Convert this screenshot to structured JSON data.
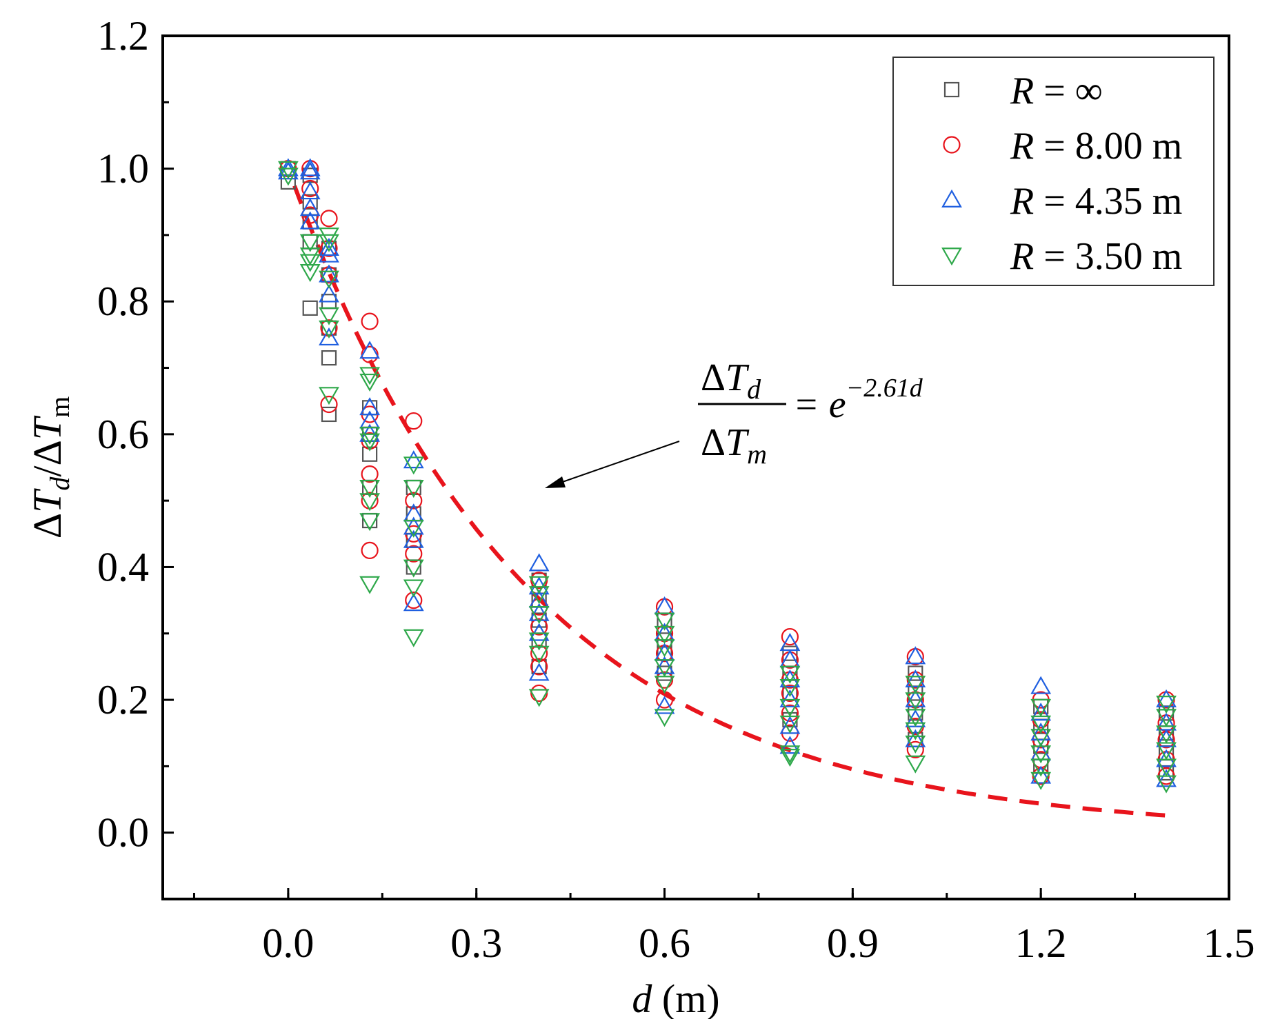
{
  "chart_data": {
    "type": "scatter",
    "title": "",
    "xlabel": {
      "var": "d",
      "unit": " (m)"
    },
    "ylabel": {
      "delta": "Δ",
      "T": "T",
      "d": "d",
      "slash": "/",
      "m": "m"
    },
    "xlim": [
      -0.2,
      1.5
    ],
    "ylim": [
      -0.1,
      1.2
    ],
    "x_ticks": [
      "0.0",
      "0.3",
      "0.6",
      "0.9",
      "1.2",
      "1.5"
    ],
    "x_tick_values": [
      0.0,
      0.3,
      0.6,
      0.9,
      1.2,
      1.5
    ],
    "y_ticks": [
      "0.0",
      "0.2",
      "0.4",
      "0.6",
      "0.8",
      "1.0",
      "1.2"
    ],
    "y_tick_values": [
      0.0,
      0.2,
      0.4,
      0.6,
      0.8,
      1.0,
      1.2
    ],
    "legend_position": "top-right",
    "legend": [
      {
        "prefix": "R",
        "rest": " = ∞",
        "marker": "square",
        "color": "#555555"
      },
      {
        "prefix": "R",
        "rest": " = 8.00 m",
        "marker": "circle",
        "color": "#e8141c"
      },
      {
        "prefix": "R",
        "rest": " = 4.35 m",
        "marker": "triangle-up",
        "color": "#1f5fe0"
      },
      {
        "prefix": "R",
        "rest": " = 3.50 m",
        "marker": "triangle-down",
        "color": "#2ea84a"
      }
    ],
    "fit": {
      "label_num_delta": "Δ",
      "label_num_T": "T",
      "label_num_sub": "d",
      "label_den_delta": "Δ",
      "label_den_T": "T",
      "label_den_sub": "m",
      "label_rhs": "= e",
      "label_exp": "−2.61d",
      "coefficient": -2.61,
      "x_range": [
        0.01,
        1.4
      ],
      "color": "#e8141c",
      "style": "dashed"
    },
    "series": [
      {
        "name": "R = ∞",
        "marker": "square",
        "color": "#555555",
        "points": [
          [
            0.0,
            1.0
          ],
          [
            0.0,
            0.98
          ],
          [
            0.035,
            0.99
          ],
          [
            0.035,
            0.95
          ],
          [
            0.035,
            0.92
          ],
          [
            0.035,
            0.89
          ],
          [
            0.035,
            0.79
          ],
          [
            0.065,
            0.88
          ],
          [
            0.065,
            0.84
          ],
          [
            0.065,
            0.8
          ],
          [
            0.065,
            0.76
          ],
          [
            0.065,
            0.715
          ],
          [
            0.065,
            0.63
          ],
          [
            0.13,
            0.64
          ],
          [
            0.13,
            0.6
          ],
          [
            0.13,
            0.57
          ],
          [
            0.13,
            0.52
          ],
          [
            0.13,
            0.47
          ],
          [
            0.2,
            0.52
          ],
          [
            0.2,
            0.48
          ],
          [
            0.2,
            0.44
          ],
          [
            0.2,
            0.4
          ],
          [
            0.4,
            0.38
          ],
          [
            0.4,
            0.35
          ],
          [
            0.4,
            0.32
          ],
          [
            0.4,
            0.29
          ],
          [
            0.4,
            0.25
          ],
          [
            0.6,
            0.32
          ],
          [
            0.6,
            0.29
          ],
          [
            0.6,
            0.27
          ],
          [
            0.6,
            0.24
          ],
          [
            0.8,
            0.27
          ],
          [
            0.8,
            0.24
          ],
          [
            0.8,
            0.21
          ],
          [
            0.8,
            0.17
          ],
          [
            1.0,
            0.24
          ],
          [
            1.0,
            0.21
          ],
          [
            1.0,
            0.18
          ],
          [
            1.0,
            0.14
          ],
          [
            1.2,
            0.19
          ],
          [
            1.2,
            0.16
          ],
          [
            1.2,
            0.13
          ],
          [
            1.2,
            0.1
          ],
          [
            1.4,
            0.18
          ],
          [
            1.4,
            0.15
          ],
          [
            1.4,
            0.12
          ],
          [
            1.4,
            0.09
          ]
        ]
      },
      {
        "name": "R = 8.00 m",
        "marker": "circle",
        "color": "#e8141c",
        "points": [
          [
            0.0,
            1.0
          ],
          [
            0.035,
            1.0
          ],
          [
            0.035,
            0.97
          ],
          [
            0.035,
            0.93
          ],
          [
            0.065,
            0.925
          ],
          [
            0.065,
            0.88
          ],
          [
            0.065,
            0.84
          ],
          [
            0.065,
            0.76
          ],
          [
            0.065,
            0.645
          ],
          [
            0.13,
            0.77
          ],
          [
            0.13,
            0.72
          ],
          [
            0.13,
            0.63
          ],
          [
            0.13,
            0.59
          ],
          [
            0.13,
            0.54
          ],
          [
            0.13,
            0.5
          ],
          [
            0.13,
            0.425
          ],
          [
            0.2,
            0.62
          ],
          [
            0.2,
            0.5
          ],
          [
            0.2,
            0.45
          ],
          [
            0.2,
            0.42
          ],
          [
            0.2,
            0.35
          ],
          [
            0.4,
            0.38
          ],
          [
            0.4,
            0.34
          ],
          [
            0.4,
            0.31
          ],
          [
            0.4,
            0.27
          ],
          [
            0.4,
            0.25
          ],
          [
            0.4,
            0.21
          ],
          [
            0.6,
            0.34
          ],
          [
            0.6,
            0.3
          ],
          [
            0.6,
            0.27
          ],
          [
            0.6,
            0.23
          ],
          [
            0.6,
            0.2
          ],
          [
            0.8,
            0.295
          ],
          [
            0.8,
            0.26
          ],
          [
            0.8,
            0.23
          ],
          [
            0.8,
            0.21
          ],
          [
            0.8,
            0.18
          ],
          [
            0.8,
            0.15
          ],
          [
            1.0,
            0.265
          ],
          [
            1.0,
            0.23
          ],
          [
            1.0,
            0.2
          ],
          [
            1.0,
            0.16
          ],
          [
            1.0,
            0.125
          ],
          [
            1.2,
            0.2
          ],
          [
            1.2,
            0.17
          ],
          [
            1.2,
            0.14
          ],
          [
            1.2,
            0.11
          ],
          [
            1.2,
            0.085
          ],
          [
            1.4,
            0.2
          ],
          [
            1.4,
            0.165
          ],
          [
            1.4,
            0.14
          ],
          [
            1.4,
            0.11
          ],
          [
            1.4,
            0.085
          ]
        ]
      },
      {
        "name": "R = 4.35 m",
        "marker": "triangle-up",
        "color": "#1f5fe0",
        "points": [
          [
            0.0,
            1.0
          ],
          [
            0.0,
            0.995
          ],
          [
            0.035,
            1.0
          ],
          [
            0.035,
            0.995
          ],
          [
            0.035,
            0.965
          ],
          [
            0.035,
            0.94
          ],
          [
            0.035,
            0.92
          ],
          [
            0.065,
            0.88
          ],
          [
            0.065,
            0.87
          ],
          [
            0.065,
            0.84
          ],
          [
            0.065,
            0.81
          ],
          [
            0.065,
            0.745
          ],
          [
            0.13,
            0.725
          ],
          [
            0.13,
            0.64
          ],
          [
            0.13,
            0.62
          ],
          [
            0.13,
            0.6
          ],
          [
            0.2,
            0.56
          ],
          [
            0.2,
            0.48
          ],
          [
            0.2,
            0.46
          ],
          [
            0.2,
            0.44
          ],
          [
            0.2,
            0.345
          ],
          [
            0.4,
            0.405
          ],
          [
            0.4,
            0.37
          ],
          [
            0.4,
            0.35
          ],
          [
            0.4,
            0.33
          ],
          [
            0.4,
            0.3
          ],
          [
            0.4,
            0.24
          ],
          [
            0.6,
            0.34
          ],
          [
            0.6,
            0.3
          ],
          [
            0.6,
            0.27
          ],
          [
            0.6,
            0.25
          ],
          [
            0.6,
            0.19
          ],
          [
            0.8,
            0.285
          ],
          [
            0.8,
            0.26
          ],
          [
            0.8,
            0.23
          ],
          [
            0.8,
            0.2
          ],
          [
            0.8,
            0.16
          ],
          [
            0.8,
            0.13
          ],
          [
            1.0,
            0.265
          ],
          [
            1.0,
            0.23
          ],
          [
            1.0,
            0.2
          ],
          [
            1.0,
            0.17
          ],
          [
            1.0,
            0.14
          ],
          [
            1.2,
            0.22
          ],
          [
            1.2,
            0.18
          ],
          [
            1.2,
            0.15
          ],
          [
            1.2,
            0.12
          ],
          [
            1.2,
            0.085
          ],
          [
            1.4,
            0.2
          ],
          [
            1.4,
            0.165
          ],
          [
            1.4,
            0.14
          ],
          [
            1.4,
            0.11
          ],
          [
            1.4,
            0.08
          ]
        ]
      },
      {
        "name": "R = 3.50 m",
        "marker": "triangle-down",
        "color": "#2ea84a",
        "points": [
          [
            0.0,
            1.0
          ],
          [
            0.0,
            0.99
          ],
          [
            0.035,
            0.89
          ],
          [
            0.035,
            0.87
          ],
          [
            0.035,
            0.86
          ],
          [
            0.035,
            0.845
          ],
          [
            0.065,
            0.9
          ],
          [
            0.065,
            0.89
          ],
          [
            0.065,
            0.835
          ],
          [
            0.065,
            0.78
          ],
          [
            0.065,
            0.76
          ],
          [
            0.065,
            0.66
          ],
          [
            0.13,
            0.69
          ],
          [
            0.13,
            0.68
          ],
          [
            0.13,
            0.6
          ],
          [
            0.13,
            0.59
          ],
          [
            0.13,
            0.52
          ],
          [
            0.13,
            0.5
          ],
          [
            0.13,
            0.47
          ],
          [
            0.13,
            0.375
          ],
          [
            0.2,
            0.555
          ],
          [
            0.2,
            0.52
          ],
          [
            0.2,
            0.46
          ],
          [
            0.2,
            0.4
          ],
          [
            0.2,
            0.37
          ],
          [
            0.2,
            0.295
          ],
          [
            0.4,
            0.375
          ],
          [
            0.4,
            0.36
          ],
          [
            0.4,
            0.33
          ],
          [
            0.4,
            0.29
          ],
          [
            0.4,
            0.27
          ],
          [
            0.4,
            0.205
          ],
          [
            0.6,
            0.32
          ],
          [
            0.6,
            0.3
          ],
          [
            0.6,
            0.28
          ],
          [
            0.6,
            0.25
          ],
          [
            0.6,
            0.225
          ],
          [
            0.6,
            0.175
          ],
          [
            0.8,
            0.24
          ],
          [
            0.8,
            0.22
          ],
          [
            0.8,
            0.19
          ],
          [
            0.8,
            0.165
          ],
          [
            0.8,
            0.12
          ],
          [
            0.8,
            0.115
          ],
          [
            1.0,
            0.225
          ],
          [
            1.0,
            0.2
          ],
          [
            1.0,
            0.175
          ],
          [
            1.0,
            0.155
          ],
          [
            1.0,
            0.135
          ],
          [
            1.0,
            0.105
          ],
          [
            1.2,
            0.19
          ],
          [
            1.2,
            0.165
          ],
          [
            1.2,
            0.145
          ],
          [
            1.2,
            0.12
          ],
          [
            1.2,
            0.1
          ],
          [
            1.2,
            0.08
          ],
          [
            1.4,
            0.195
          ],
          [
            1.4,
            0.175
          ],
          [
            1.4,
            0.15
          ],
          [
            1.4,
            0.125
          ],
          [
            1.4,
            0.1
          ],
          [
            1.4,
            0.075
          ]
        ]
      }
    ]
  }
}
